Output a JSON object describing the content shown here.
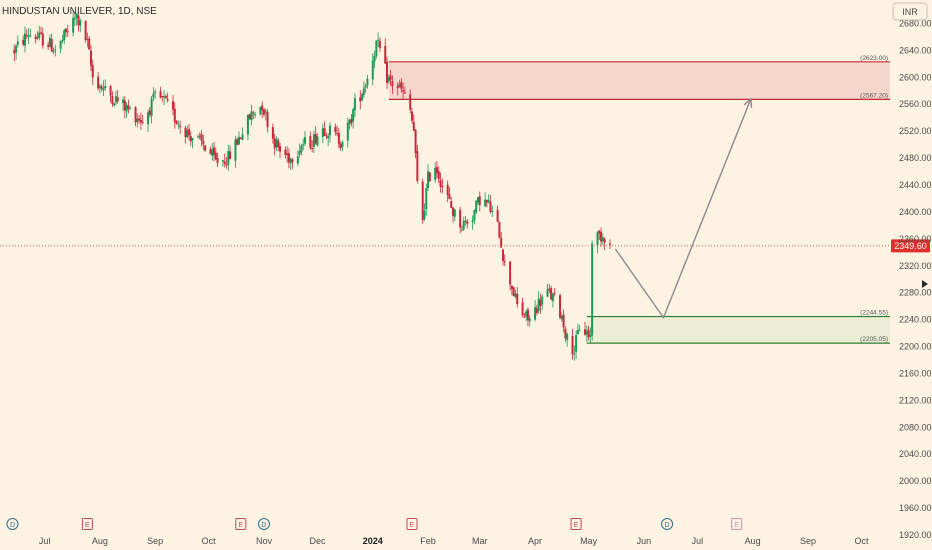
{
  "header": {
    "title": "HINDUSTAN UNILEVER, 1D, NSE",
    "currency_button": "INR"
  },
  "colors": {
    "background": "#fdf3e3",
    "up": "#1a9a55",
    "down": "#c8283a",
    "resistance_fill": "#f6d0c8",
    "resistance_line": "#c8283a",
    "support_fill": "#e8ebd2",
    "support_line": "#2e7d32",
    "price_badge": "#e0302e",
    "projection": "#8a8a8a",
    "event_dividend": "#2f6e8a",
    "event_earnings": "#c04a63",
    "event_future": "#c04a8a"
  },
  "chart_data": {
    "type": "candlestick",
    "symbol": "HINDUSTAN UNILEVER",
    "interval": "1D",
    "exchange": "NSE",
    "currency": "INR",
    "last_price": 2349.6,
    "last_price_label": "2349.60",
    "ylim": [
      1920,
      2700
    ],
    "y_ticks": [
      2680,
      2640,
      2600,
      2560,
      2520,
      2480,
      2440,
      2400,
      2360,
      2320,
      2280,
      2240,
      2200,
      2160,
      2120,
      2080,
      2040,
      2000,
      1960,
      1920
    ],
    "y_tick_labels": [
      "2680.00",
      "2640.00",
      "2600.00",
      "2560.00",
      "2520.00",
      "2480.00",
      "2440.00",
      "2400.00",
      "2360.00",
      "2320.00",
      "2280.00",
      "2240.00",
      "2200.00",
      "2160.00",
      "2120.00",
      "2080.00",
      "2040.00",
      "2000.00",
      "1960.00",
      "1920.00"
    ],
    "x_labels": [
      {
        "label": "Jul",
        "date": "2023-07-01",
        "bold": false
      },
      {
        "label": "Aug",
        "date": "2023-08-01",
        "bold": false
      },
      {
        "label": "Sep",
        "date": "2023-09-01",
        "bold": false
      },
      {
        "label": "Oct",
        "date": "2023-10-01",
        "bold": false
      },
      {
        "label": "Nov",
        "date": "2023-11-01",
        "bold": false
      },
      {
        "label": "Dec",
        "date": "2023-12-01",
        "bold": false
      },
      {
        "label": "2024",
        "date": "2024-01-01",
        "bold": true
      },
      {
        "label": "Feb",
        "date": "2024-02-01",
        "bold": false
      },
      {
        "label": "Mar",
        "date": "2024-03-01",
        "bold": false
      },
      {
        "label": "Apr",
        "date": "2024-04-01",
        "bold": false
      },
      {
        "label": "May",
        "date": "2024-05-01",
        "bold": false
      },
      {
        "label": "Jun",
        "date": "2024-06-01",
        "bold": false
      },
      {
        "label": "Jul",
        "date": "2024-07-01",
        "bold": false
      },
      {
        "label": "Aug",
        "date": "2024-08-01",
        "bold": false
      },
      {
        "label": "Sep",
        "date": "2024-09-01",
        "bold": false
      },
      {
        "label": "Oct",
        "date": "2024-10-01",
        "bold": false
      }
    ],
    "price_path": [
      [
        "2023-06-14",
        2640
      ],
      [
        "2023-06-22",
        2665
      ],
      [
        "2023-07-01",
        2655
      ],
      [
        "2023-07-08",
        2640
      ],
      [
        "2023-07-14",
        2670
      ],
      [
        "2023-07-19",
        2690
      ],
      [
        "2023-07-25",
        2650
      ],
      [
        "2023-07-28",
        2600
      ],
      [
        "2023-08-04",
        2580
      ],
      [
        "2023-08-11",
        2565
      ],
      [
        "2023-08-18",
        2550
      ],
      [
        "2023-08-25",
        2535
      ],
      [
        "2023-09-01",
        2570
      ],
      [
        "2023-09-06",
        2565
      ],
      [
        "2023-09-12",
        2540
      ],
      [
        "2023-09-20",
        2515
      ],
      [
        "2023-09-28",
        2500
      ],
      [
        "2023-10-05",
        2475
      ],
      [
        "2023-10-12",
        2480
      ],
      [
        "2023-10-18",
        2510
      ],
      [
        "2023-10-25",
        2545
      ],
      [
        "2023-10-31",
        2560
      ],
      [
        "2023-11-06",
        2510
      ],
      [
        "2023-11-10",
        2490
      ],
      [
        "2023-11-16",
        2480
      ],
      [
        "2023-11-22",
        2500
      ],
      [
        "2023-11-28",
        2505
      ],
      [
        "2023-12-04",
        2525
      ],
      [
        "2023-12-08",
        2520
      ],
      [
        "2023-12-14",
        2505
      ],
      [
        "2023-12-19",
        2530
      ],
      [
        "2023-12-22",
        2560
      ],
      [
        "2023-12-26",
        2580
      ],
      [
        "2023-12-29",
        2600
      ],
      [
        "2024-01-03",
        2650
      ],
      [
        "2024-01-05",
        2640
      ],
      [
        "2024-01-09",
        2600
      ],
      [
        "2024-01-12",
        2590
      ],
      [
        "2024-01-16",
        2585
      ],
      [
        "2024-01-19",
        2570
      ],
      [
        "2024-01-22",
        2550
      ],
      [
        "2024-01-24",
        2520
      ],
      [
        "2024-01-26",
        2440
      ],
      [
        "2024-01-29",
        2390
      ],
      [
        "2024-02-01",
        2450
      ],
      [
        "2024-02-05",
        2470
      ],
      [
        "2024-02-09",
        2440
      ],
      [
        "2024-02-15",
        2400
      ],
      [
        "2024-02-20",
        2380
      ],
      [
        "2024-02-26",
        2395
      ],
      [
        "2024-03-01",
        2420
      ],
      [
        "2024-03-06",
        2410
      ],
      [
        "2024-03-12",
        2370
      ],
      [
        "2024-03-15",
        2320
      ],
      [
        "2024-03-19",
        2290
      ],
      [
        "2024-03-22",
        2260
      ],
      [
        "2024-03-26",
        2245
      ],
      [
        "2024-03-29",
        2240
      ],
      [
        "2024-04-03",
        2265
      ],
      [
        "2024-04-08",
        2280
      ],
      [
        "2024-04-12",
        2270
      ],
      [
        "2024-04-16",
        2245
      ],
      [
        "2024-04-19",
        2210
      ],
      [
        "2024-04-23",
        2195
      ],
      [
        "2024-04-26",
        2230
      ],
      [
        "2024-04-30",
        2220
      ],
      [
        "2024-05-02",
        2215
      ],
      [
        "2024-05-03",
        2360
      ],
      [
        "2024-05-07",
        2365
      ],
      [
        "2024-05-10",
        2365
      ],
      [
        "2024-05-13",
        2350
      ]
    ],
    "zones": [
      {
        "kind": "resistance",
        "from_date": "2024-01-10",
        "to_date": "2024-10-17",
        "top": 2623.0,
        "bottom": 2567.2,
        "top_label": "(2623.00)",
        "bottom_label": "(2567.20)"
      },
      {
        "kind": "support",
        "from_date": "2024-04-30",
        "to_date": "2024-10-17",
        "top": 2244.55,
        "bottom": 2205.05,
        "top_label": "(2244.55)",
        "bottom_label": "(2205.05)"
      }
    ],
    "projection_path": [
      [
        "2024-05-16",
        2345
      ],
      [
        "2024-06-12",
        2243
      ],
      [
        "2024-07-31",
        2568
      ]
    ],
    "events": [
      {
        "kind": "dividend",
        "letter": "D",
        "date": "2023-06-13"
      },
      {
        "kind": "earnings",
        "letter": "E",
        "date": "2023-07-25"
      },
      {
        "kind": "earnings",
        "letter": "E",
        "date": "2023-10-19"
      },
      {
        "kind": "dividend",
        "letter": "D",
        "date": "2023-11-01"
      },
      {
        "kind": "earnings",
        "letter": "E",
        "date": "2024-01-23"
      },
      {
        "kind": "earnings",
        "letter": "E",
        "date": "2024-04-24"
      },
      {
        "kind": "dividend_future",
        "letter": "D",
        "date": "2024-06-14"
      },
      {
        "kind": "earnings_future",
        "letter": "E",
        "date": "2024-07-23"
      }
    ]
  }
}
